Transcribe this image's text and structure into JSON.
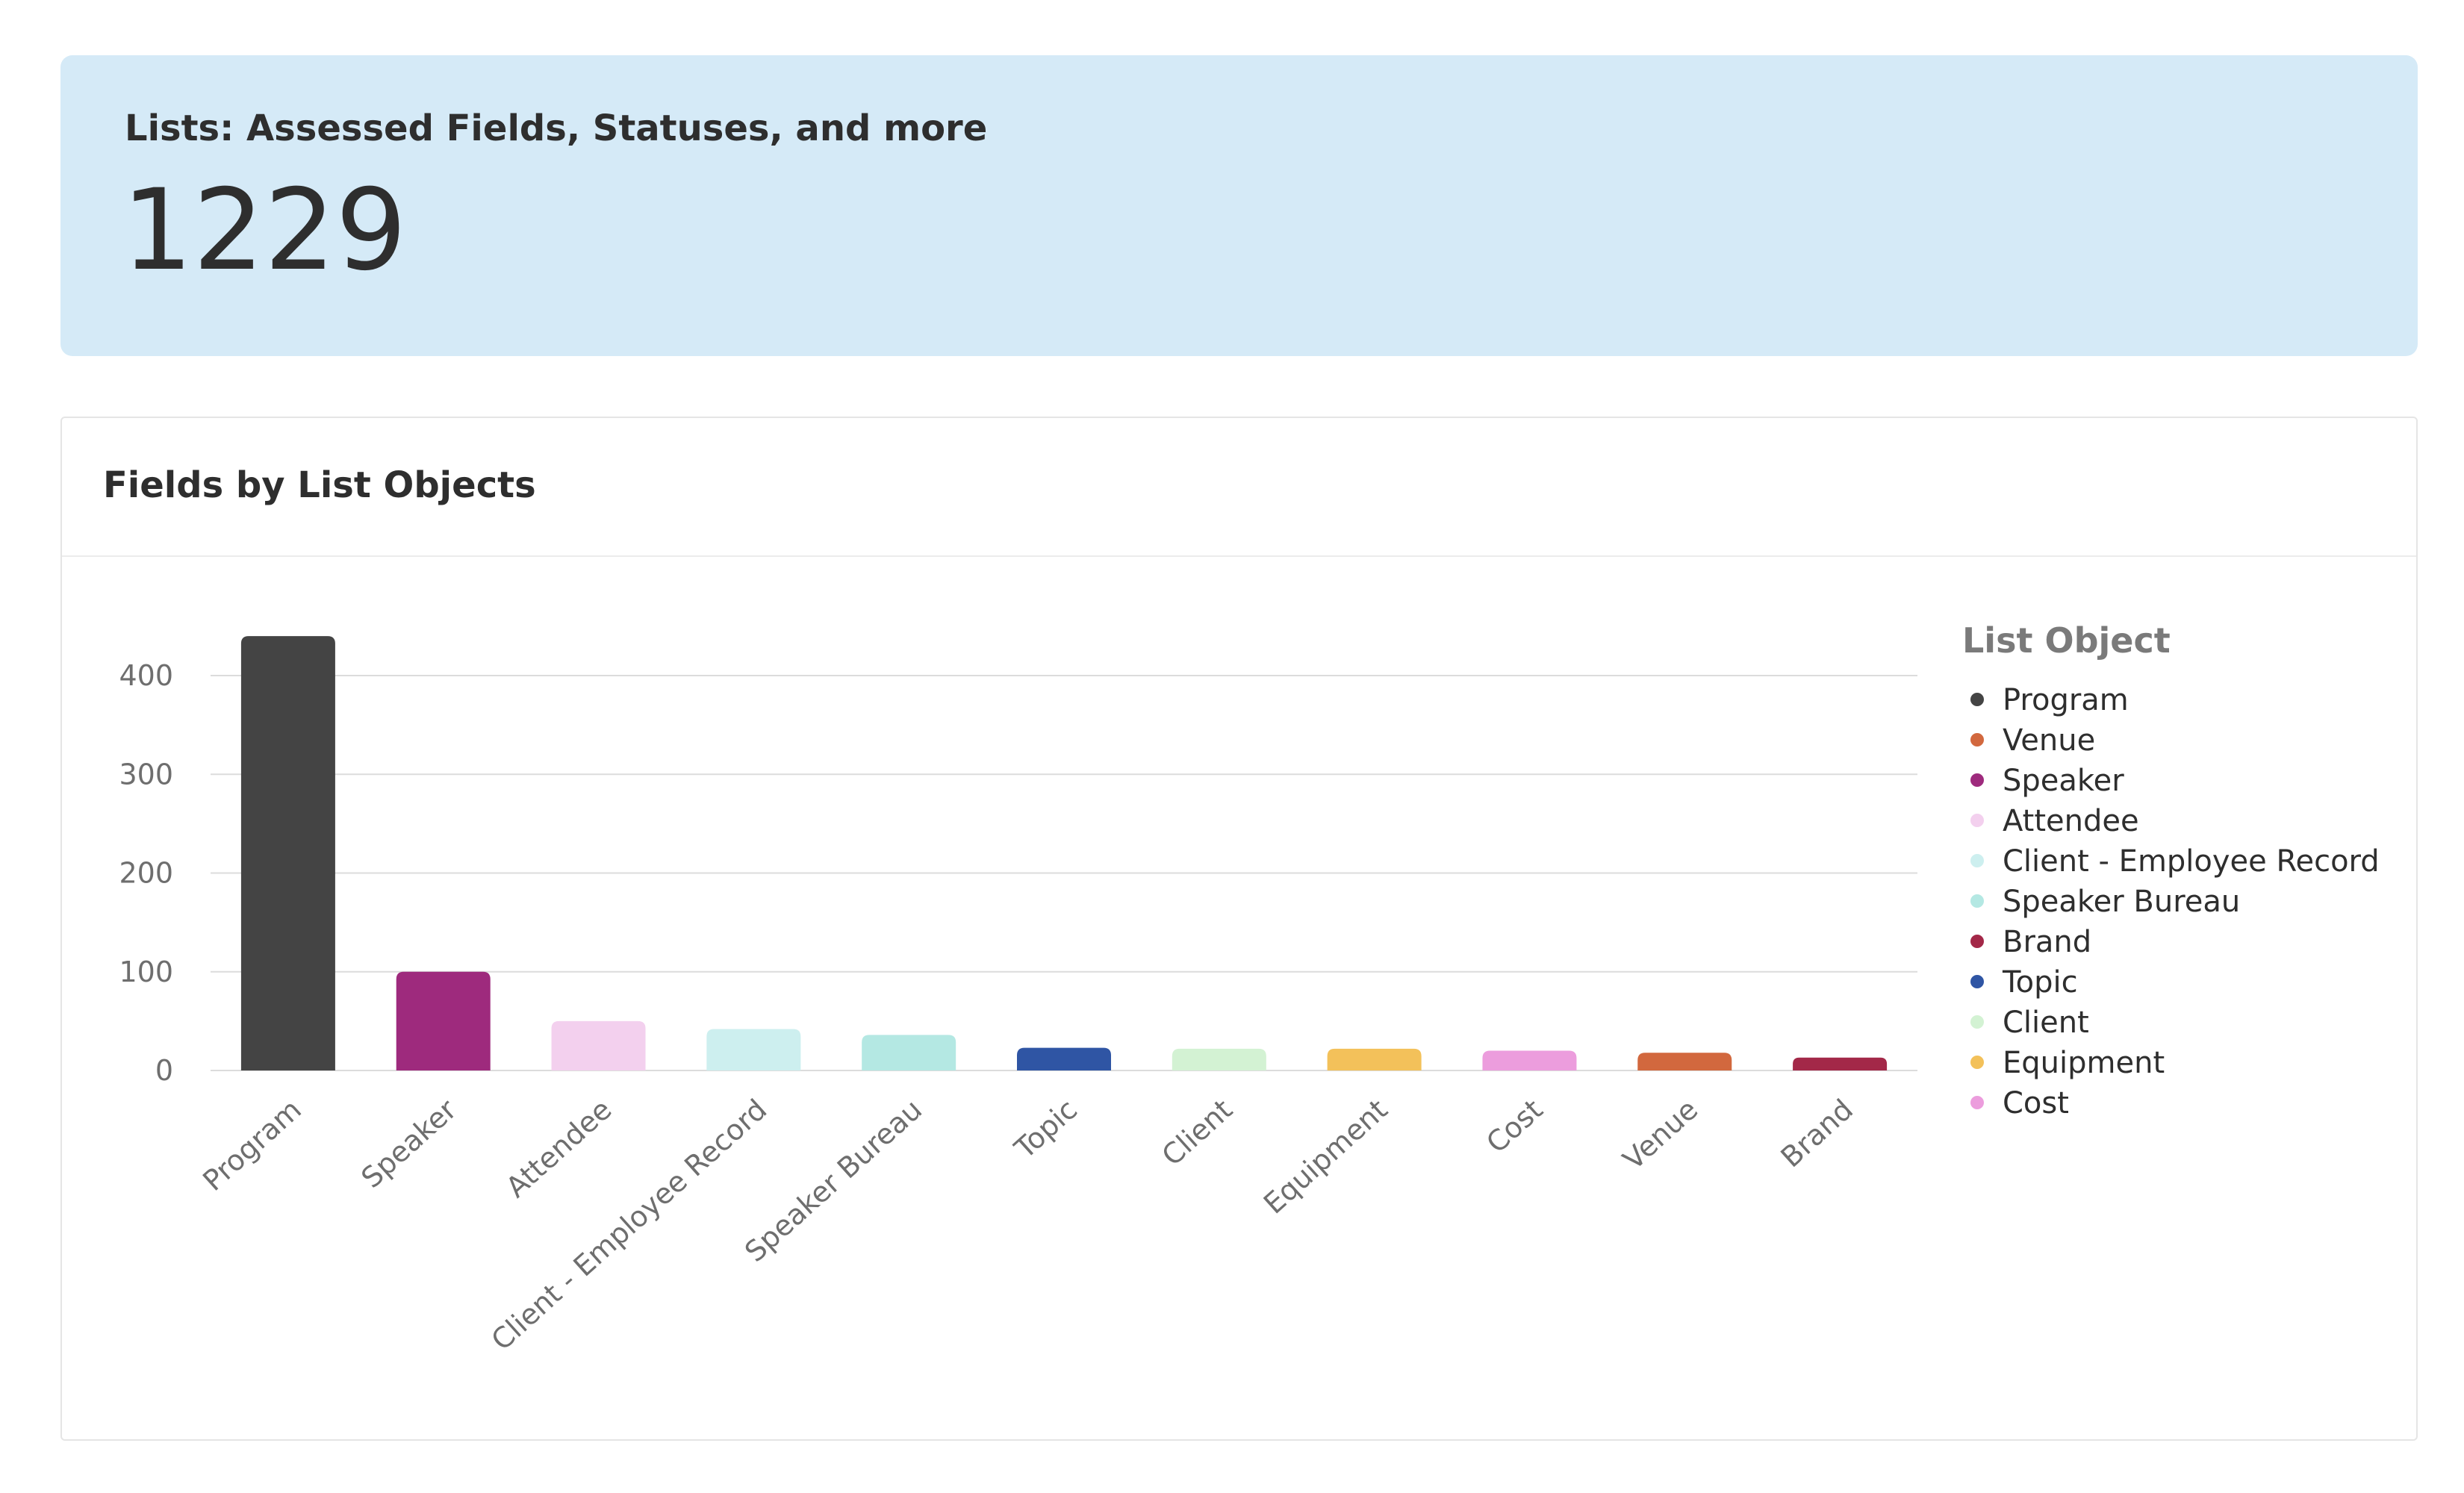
{
  "metric": {
    "label": "Lists: Assessed Fields, Statuses, and more",
    "value": "1229"
  },
  "chart_card": {
    "title": "Fields by List Objects"
  },
  "chart_data": {
    "type": "bar",
    "title": "Fields by List Objects",
    "xlabel": "",
    "ylabel": "",
    "categories": [
      "Program",
      "Speaker",
      "Attendee",
      "Client - Employee Record",
      "Speaker Bureau",
      "Topic",
      "Client",
      "Equipment",
      "Cost",
      "Venue",
      "Brand"
    ],
    "values": [
      440,
      100,
      50,
      42,
      36,
      23,
      22,
      22,
      20,
      18,
      13
    ],
    "colors": [
      "#444444",
      "#9e2a7d",
      "#f3d0ee",
      "#cdefef",
      "#b4e8e3",
      "#2f55a4",
      "#d3f2d3",
      "#f3c15a",
      "#ec9ddd",
      "#d2683e",
      "#a32848"
    ],
    "ylim": [
      0,
      440
    ],
    "yticks": [
      0,
      100,
      200,
      300,
      400
    ],
    "grid": true,
    "legend": {
      "title": "List Object",
      "placement": "right",
      "items": [
        "Program",
        "Venue",
        "Speaker",
        "Attendee",
        "Client - Employee Record",
        "Speaker Bureau",
        "Brand",
        "Topic",
        "Client",
        "Equipment",
        "Cost"
      ]
    }
  },
  "colors": {
    "metric_background": "#d5eaf7",
    "gridline": "#dcdcdc",
    "axis_text": "#6e6e6e",
    "legend_title": "#7a7a7a",
    "legend_text": "#2e2e2e"
  }
}
